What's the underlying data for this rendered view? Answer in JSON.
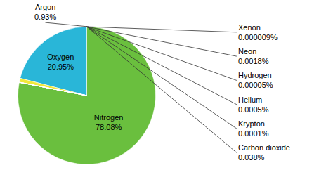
{
  "chart_data": {
    "type": "pie",
    "categories": [
      "Nitrogen",
      "Oxygen",
      "Argon",
      "Carbon dioxide",
      "Krypton",
      "Helium",
      "Hydrogen",
      "Neon",
      "Xenon"
    ],
    "values": [
      78.08,
      20.95,
      0.93,
      0.038,
      0.0001,
      0.0005,
      5e-05,
      0.0018,
      9e-06
    ],
    "value_labels": [
      "78.08%",
      "20.95%",
      "0.93%",
      "0.038%",
      "0.0001%",
      "0.0005%",
      "0.00005%",
      "0.0018%",
      "0.000009%"
    ],
    "colors": [
      "#6abf3e",
      "#29b6d8",
      "#f0e83a",
      "#6abf3e",
      "#6abf3e",
      "#6abf3e",
      "#6abf3e",
      "#6abf3e",
      "#6abf3e"
    ],
    "data_labels": true
  }
}
